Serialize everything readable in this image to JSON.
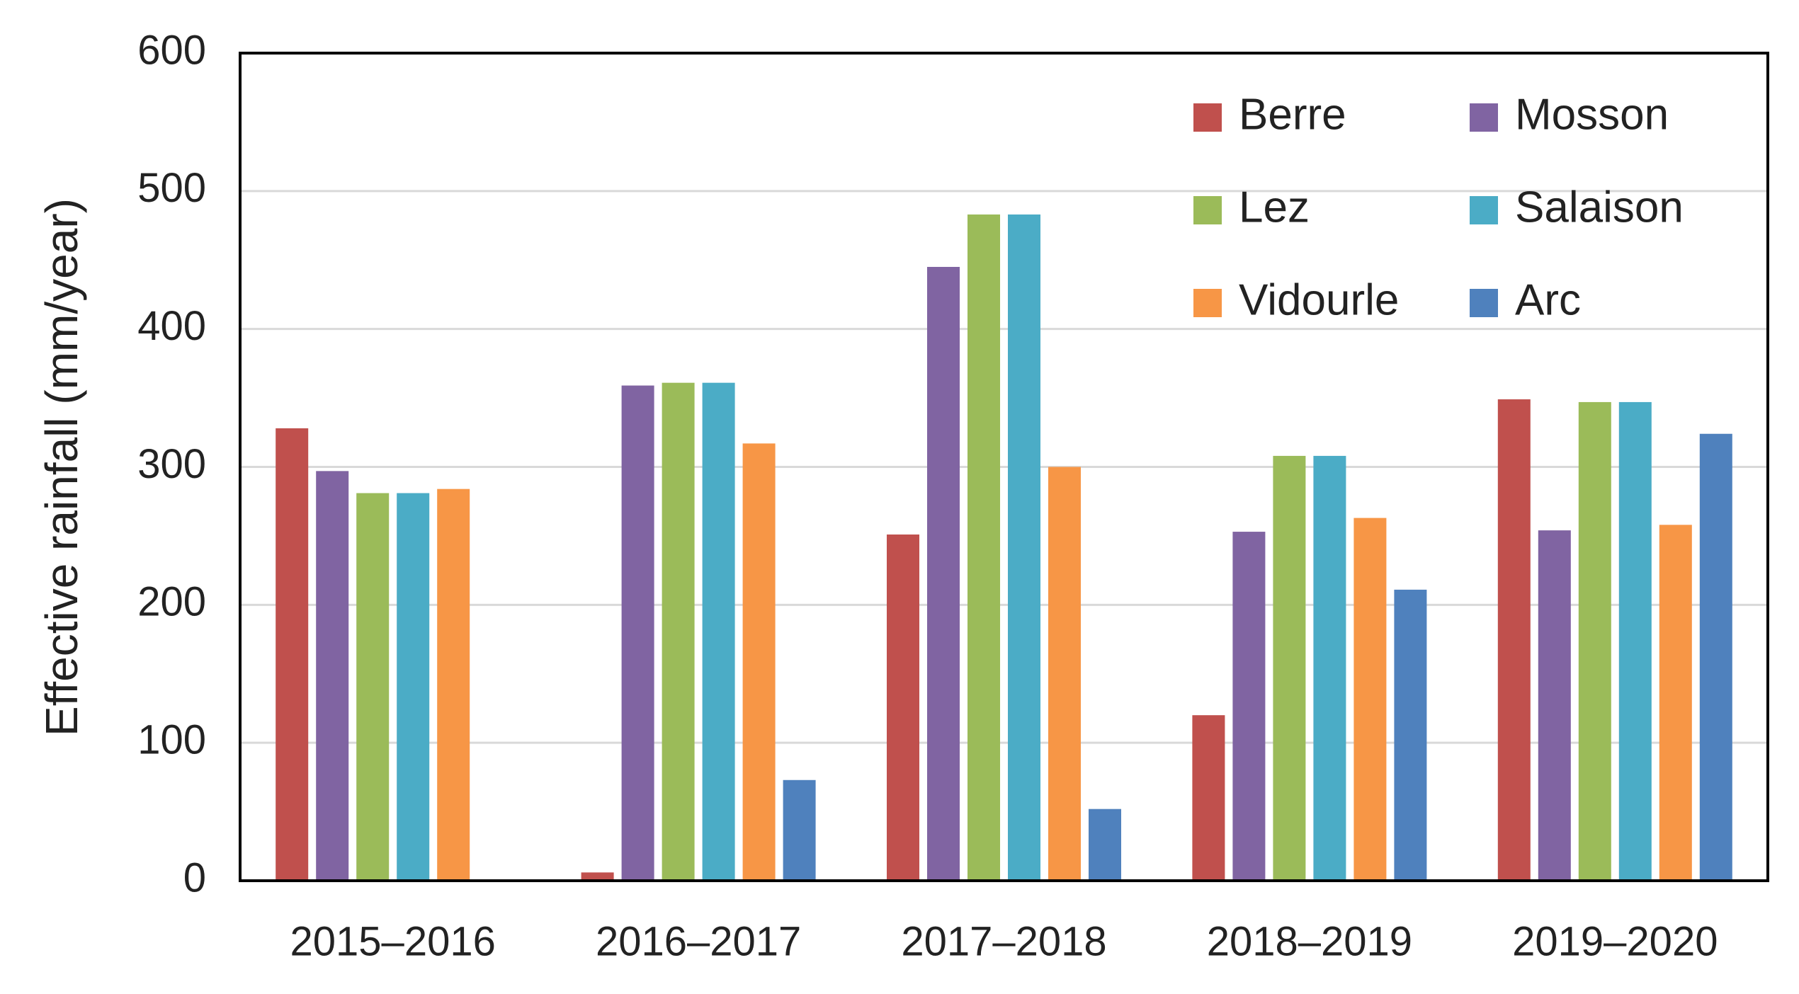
{
  "chart_data": {
    "type": "bar",
    "y_label": "Effective rainfall (mm/year)",
    "categories": [
      "2015–2016",
      "2016–2017",
      "2017–2018",
      "2018–2019",
      "2019–2020"
    ],
    "series": [
      {
        "name": "Berre",
        "color": "#c0504d",
        "values": [
          328,
          6,
          251,
          120,
          349
        ]
      },
      {
        "name": "Mosson",
        "color": "#8064a2",
        "values": [
          297,
          359,
          445,
          253,
          254
        ]
      },
      {
        "name": "Lez",
        "color": "#9bbb59",
        "values": [
          281,
          361,
          483,
          308,
          347
        ]
      },
      {
        "name": "Salaison",
        "color": "#4bacc6",
        "values": [
          281,
          361,
          483,
          308,
          347
        ]
      },
      {
        "name": "Vidourle",
        "color": "#f79646",
        "values": [
          284,
          317,
          300,
          263,
          258
        ]
      },
      {
        "name": "Arc",
        "color": "#4f81bd",
        "values": [
          null,
          73,
          52,
          211,
          324
        ]
      }
    ],
    "ylim": [
      0,
      600
    ],
    "yticks": [
      0,
      100,
      200,
      300,
      400,
      500,
      600
    ],
    "grid": true,
    "legend": "upper right"
  }
}
